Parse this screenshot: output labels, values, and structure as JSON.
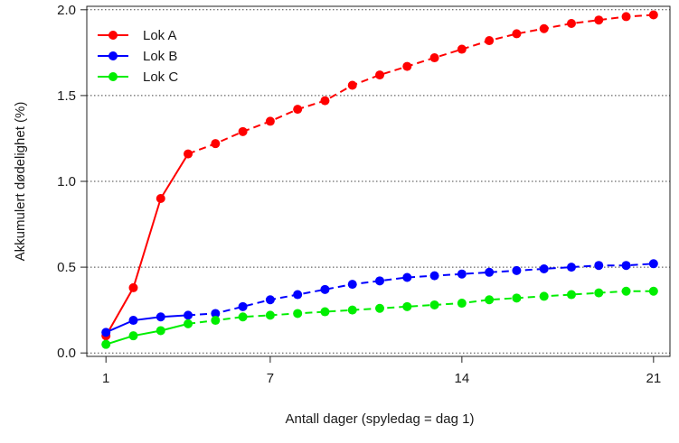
{
  "chart_data": {
    "type": "line",
    "title": "",
    "xlabel": "Antall dager (spyledag = dag 1)",
    "ylabel": "Akkumulert dødelighet (%)",
    "xlim": [
      0.3,
      21.6
    ],
    "ylim": [
      -0.02,
      2.02
    ],
    "x_ticks": [
      1,
      7,
      14,
      21
    ],
    "y_ticks": [
      0.0,
      0.5,
      1.0,
      1.5,
      2.0
    ],
    "y_tick_labels": [
      "0.0",
      "0.5",
      "1.0",
      "1.5",
      "2.0"
    ],
    "grid": "horizontal dotted",
    "legend_position": "top-left",
    "x": [
      1,
      2,
      3,
      4,
      5,
      6,
      7,
      8,
      9,
      10,
      11,
      12,
      13,
      14,
      15,
      16,
      17,
      18,
      19,
      20,
      21
    ],
    "series": [
      {
        "name": "Lok A",
        "color": "#ff0000",
        "values": [
          0.1,
          0.38,
          0.9,
          1.16,
          1.22,
          1.29,
          1.35,
          1.42,
          1.47,
          1.56,
          1.62,
          1.67,
          1.72,
          1.77,
          1.82,
          1.86,
          1.89,
          1.92,
          1.94,
          1.96,
          1.97
        ]
      },
      {
        "name": "Lok B",
        "color": "#0000ff",
        "values": [
          0.12,
          0.19,
          0.21,
          0.22,
          0.23,
          0.27,
          0.31,
          0.34,
          0.37,
          0.4,
          0.42,
          0.44,
          0.45,
          0.46,
          0.47,
          0.48,
          0.49,
          0.5,
          0.51,
          0.51,
          0.52
        ]
      },
      {
        "name": "Lok C",
        "color": "#00ee00",
        "values": [
          0.05,
          0.1,
          0.13,
          0.17,
          0.19,
          0.21,
          0.22,
          0.23,
          0.24,
          0.25,
          0.26,
          0.27,
          0.28,
          0.29,
          0.31,
          0.32,
          0.33,
          0.34,
          0.35,
          0.36,
          0.36
        ]
      }
    ],
    "line_style": "solid for first 4 points, dashed afterwards"
  }
}
